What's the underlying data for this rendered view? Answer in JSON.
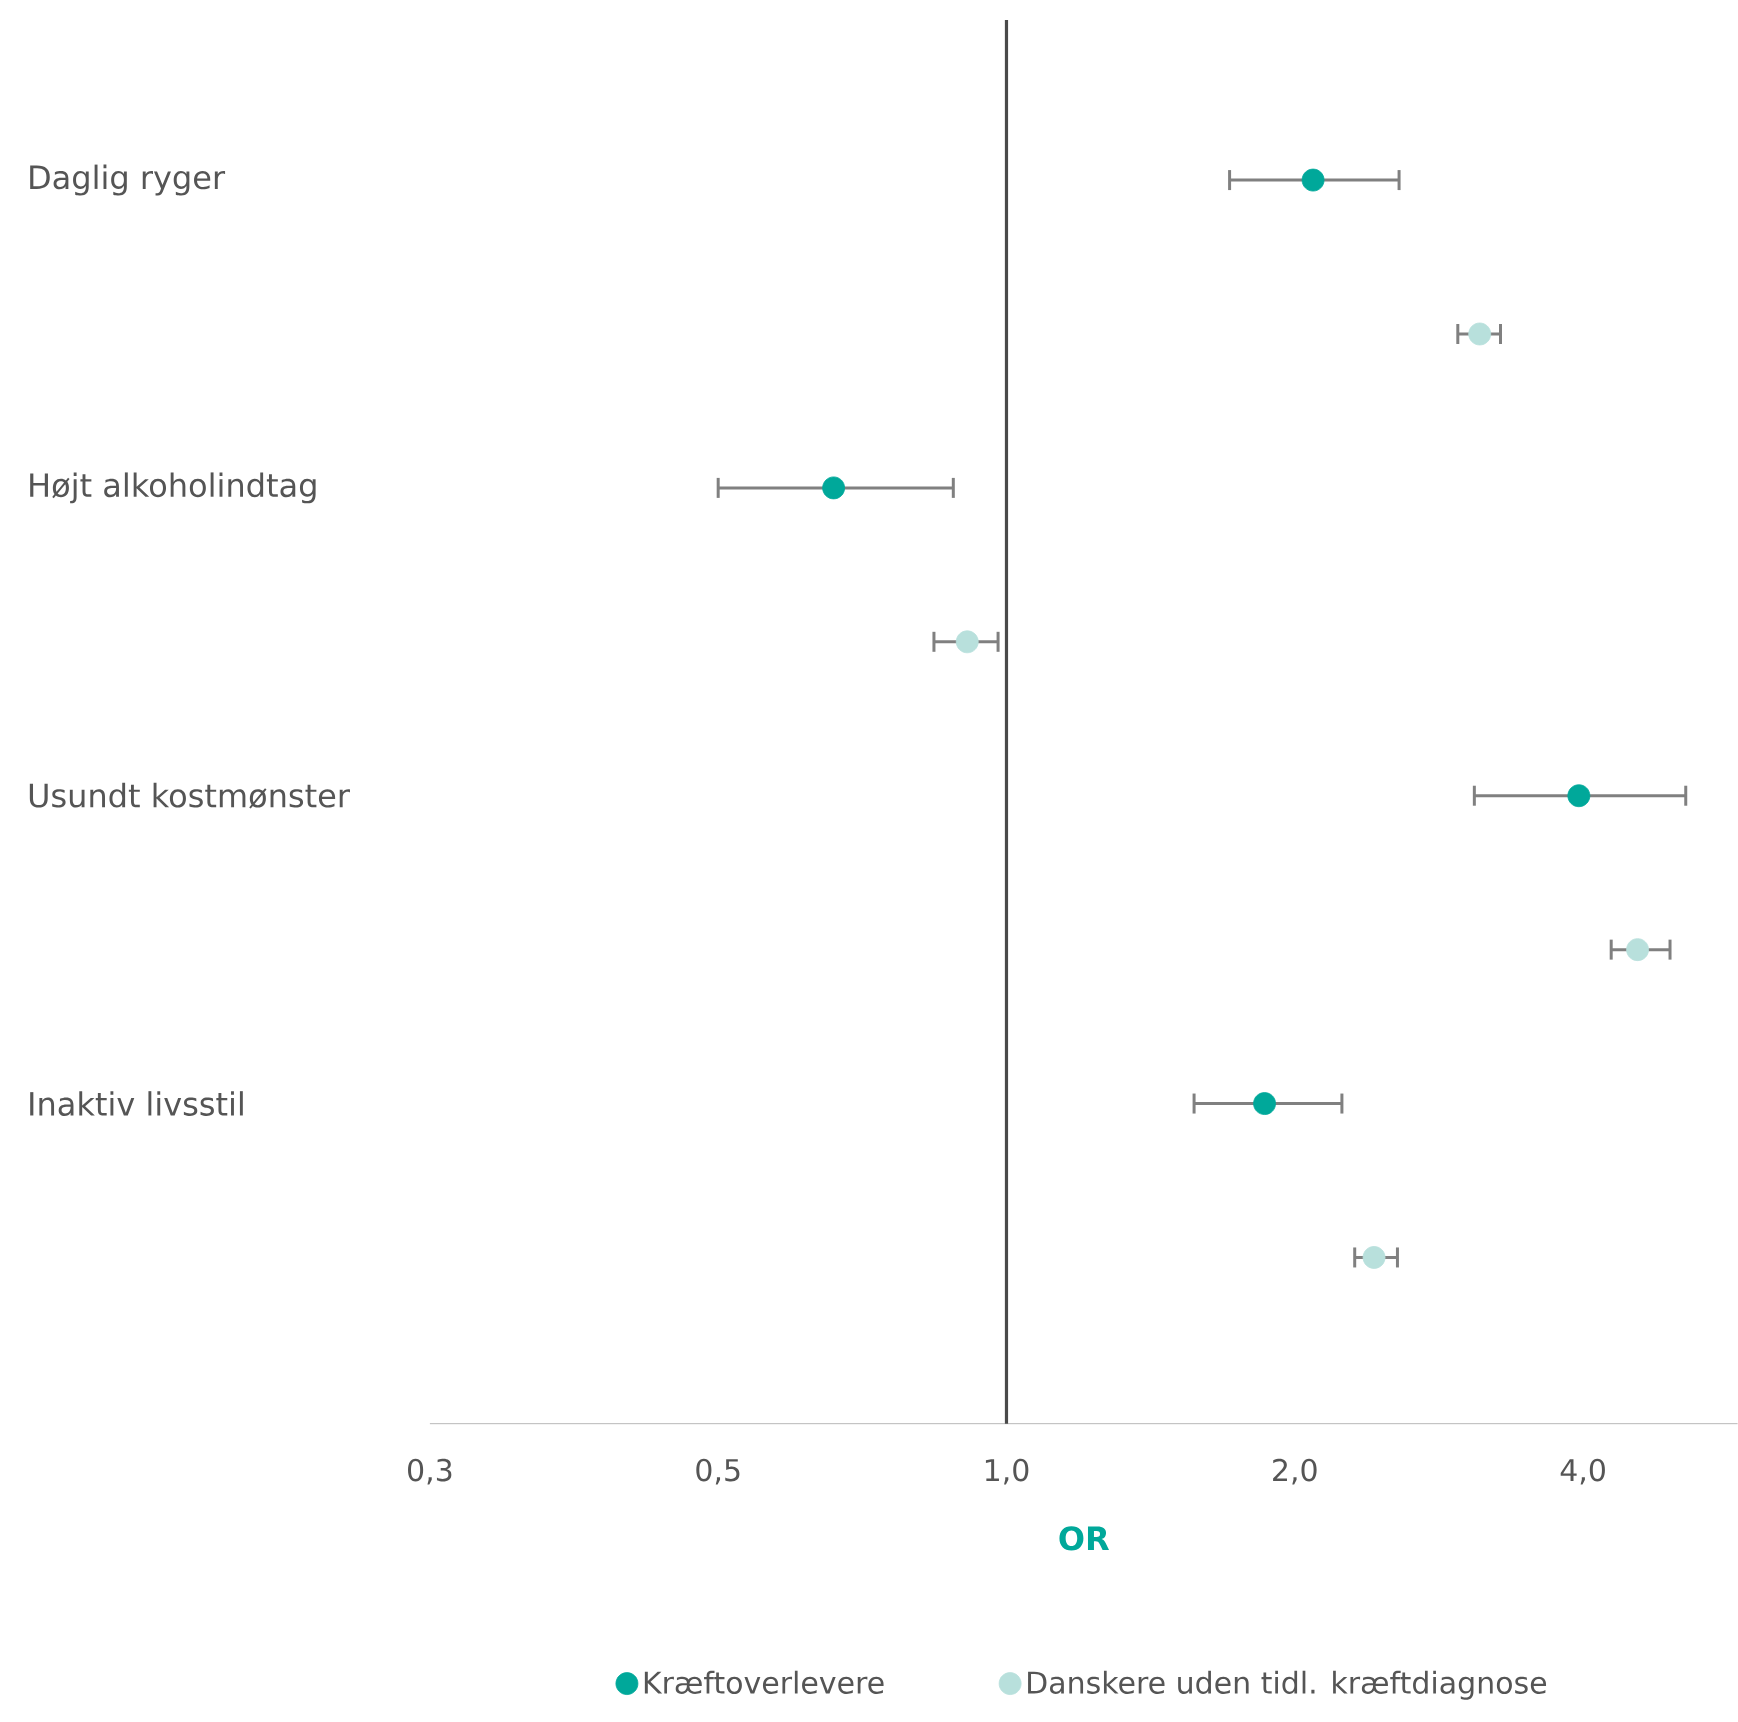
{
  "chart_data": {
    "type": "scatter",
    "orientation": "horizontal",
    "log": "x",
    "marker": "circle",
    "legend": "bottom",
    "xlabel": "OR",
    "categories": [
      "Daglig ryger",
      "Højt alkoholindtag",
      "Usundt kostmønster",
      "Inaktiv livsstil"
    ],
    "xlim": [
      0.25,
      5.8
    ],
    "xticks": [
      {
        "value": 0.25,
        "label": "0,3"
      },
      {
        "value": 0.5,
        "label": "0,5"
      },
      {
        "value": 1,
        "label": "1,0"
      },
      {
        "value": 2,
        "label": "2,0"
      },
      {
        "value": 4,
        "label": "4,0"
      }
    ],
    "ref_lines": [
      {
        "axis": "x",
        "value": 1,
        "color": "#4a4a4a"
      }
    ],
    "series": [
      {
        "name": "Kræftoverlevere",
        "color": "#00a89a",
        "values": [
          2.09,
          0.66,
          3.96,
          1.86
        ],
        "errors": [
          [
            1.71,
            2.57
          ],
          [
            0.5,
            0.88
          ],
          [
            3.08,
            5.12
          ],
          [
            1.57,
            2.24
          ]
        ]
      },
      {
        "name": "Danskere uden tidl. kræftdiagnose",
        "color": "#b8e0dc",
        "values": [
          3.12,
          0.91,
          4.56,
          2.42
        ],
        "errors": [
          [
            2.96,
            3.28
          ],
          [
            0.84,
            0.98
          ],
          [
            4.28,
            4.93
          ],
          [
            2.31,
            2.56
          ]
        ]
      }
    ]
  }
}
